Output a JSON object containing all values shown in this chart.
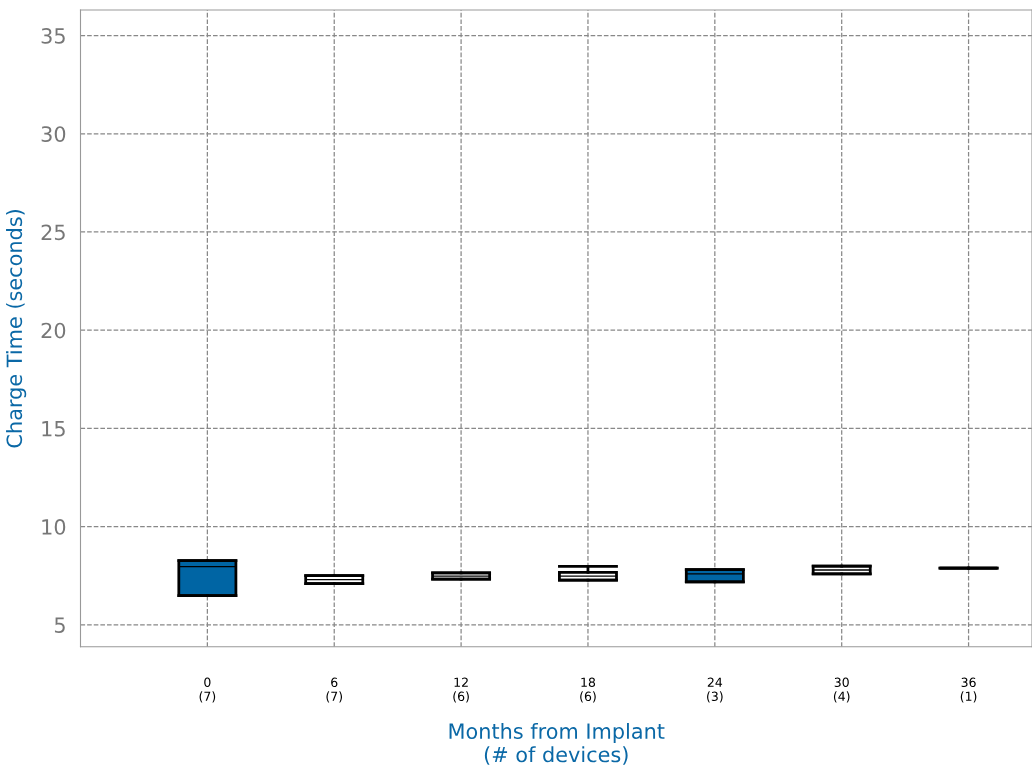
{
  "chart_data": {
    "type": "box",
    "xlabel": "Months from Implant\n(# of devices)",
    "ylabel": "Charge Time (seconds)",
    "categories": [
      "0\n(7)",
      "6\n(7)",
      "12\n(6)",
      "18\n(6)",
      "24\n(3)",
      "30\n(4)",
      "36\n(1)"
    ],
    "boxes": [
      {
        "low": 6.48,
        "q1": 6.48,
        "median": 7.96,
        "q3": 8.27,
        "high": 8.27
      },
      {
        "low": 7.1,
        "q1": 7.1,
        "median": 7.3,
        "q3": 7.5,
        "high": 7.5
      },
      {
        "low": 7.33,
        "q1": 7.33,
        "median": 7.48,
        "q3": 7.64,
        "high": 7.64
      },
      {
        "low": 7.28,
        "q1": 7.28,
        "median": 7.48,
        "q3": 7.67,
        "high": 7.97
      },
      {
        "low": 7.19,
        "q1": 7.19,
        "median": 7.59,
        "q3": 7.81,
        "high": 7.81
      },
      {
        "low": 7.59,
        "q1": 7.59,
        "median": 7.79,
        "q3": 7.99,
        "high": 7.99
      },
      {
        "low": 7.89,
        "q1": 7.89,
        "median": 7.89,
        "q3": 7.89,
        "high": 7.89
      }
    ],
    "colors": [
      "#0065a4",
      "#ffffff",
      "#ffffff",
      "#ffffff",
      "#0065a4",
      "#ffffff",
      "#000000"
    ],
    "ylim": [
      3.88,
      36.3
    ],
    "yticks": [
      5,
      10,
      15,
      20,
      25,
      30,
      35
    ],
    "grid": true
  }
}
